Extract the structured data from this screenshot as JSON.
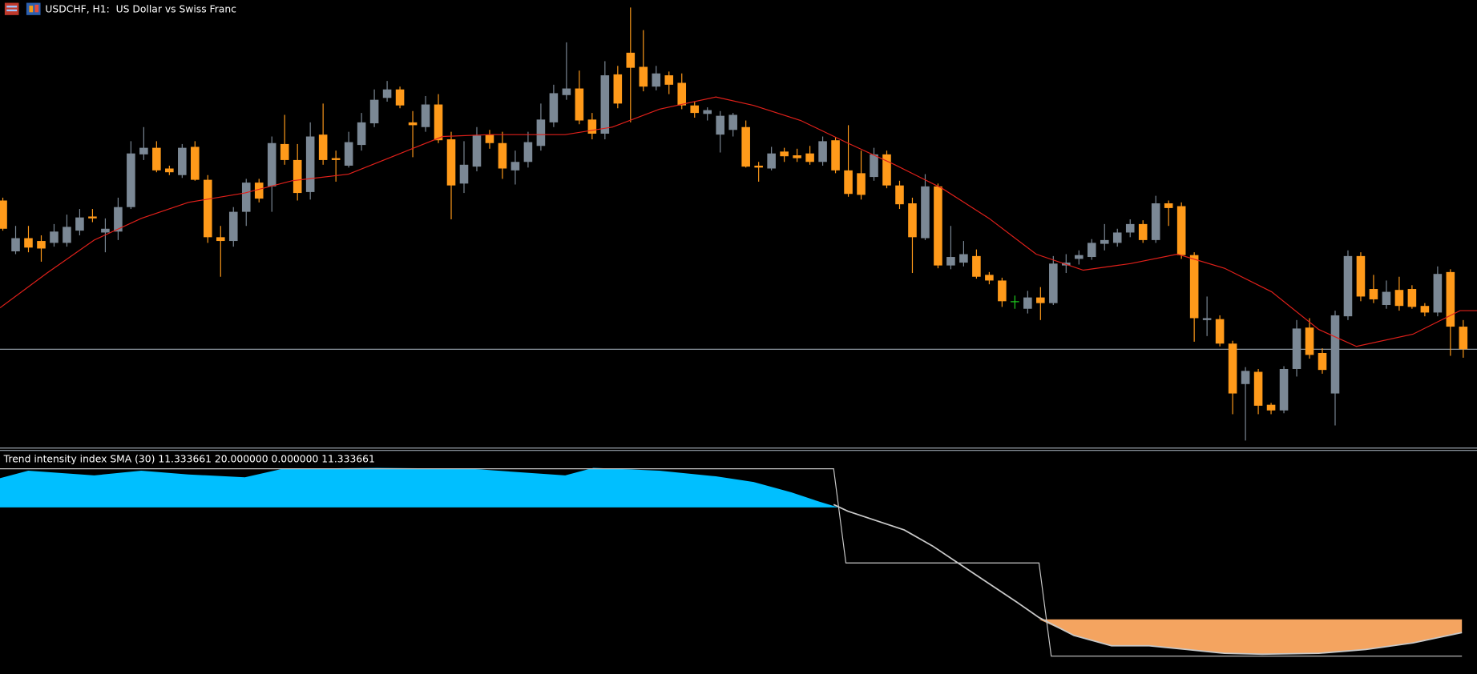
{
  "header": {
    "title": "USDCHF, H1:  US Dollar vs Swiss Franc"
  },
  "indicator": {
    "label": "Trend intensity index SMA (30) 11.333661 20.000000 0.000000 11.333661"
  }
}
